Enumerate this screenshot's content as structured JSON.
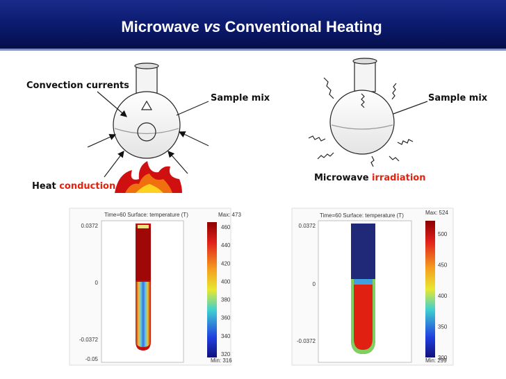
{
  "header": {
    "title_start": "Microwave",
    "title_em": "vs",
    "title_end": "Conventional Heating"
  },
  "left_diagram": {
    "convection_label": "Convection currents",
    "sample_label": "Sample mix",
    "heat_label": "Heat",
    "heat_label_em": "conduction"
  },
  "right_diagram": {
    "sample_label": "Sample mix",
    "irradiation_label": "Microwave",
    "irradiation_label_em": "irradiation"
  },
  "plots": [
    {
      "title": "Time=60  Surface: temperature (T)",
      "max_label": "Max: 473",
      "min_label": "Min: 316",
      "colorbar_ticks": [
        "460",
        "440",
        "420",
        "400",
        "380",
        "360",
        "340",
        "320"
      ],
      "y_ticks": [
        "0.0372",
        "0",
        "-0.0372",
        "-0.05"
      ]
    },
    {
      "title": "Time=60  Surface: temperature (T)",
      "max_label": "Max: 524",
      "min_label": "Min: 299",
      "colorbar_ticks": [
        "500",
        "450",
        "400",
        "350",
        "300"
      ],
      "y_ticks": [
        "0.0372",
        "0",
        "-0.0372"
      ]
    }
  ]
}
